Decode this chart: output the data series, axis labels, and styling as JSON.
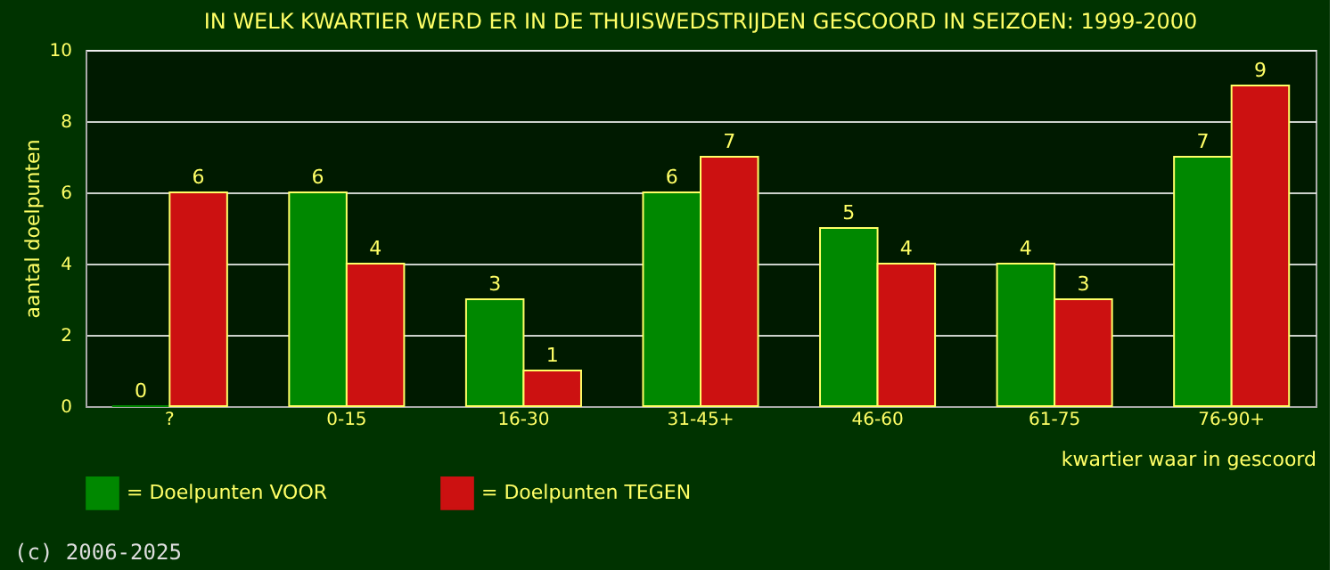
{
  "chart_data": {
    "type": "bar",
    "title": "IN WELK KWARTIER WERD ER IN DE THUISWEDSTRIJDEN GESCOORD IN SEIZOEN: 1999-2000",
    "xlabel": "kwartier waar in gescoord",
    "ylabel": "aantal doelpunten",
    "categories": [
      "?",
      "0-15",
      "16-30",
      "31-45+",
      "46-60",
      "61-75",
      "76-90+"
    ],
    "series": [
      {
        "name": "= Doelpunten VOOR",
        "color": "#008800",
        "values": [
          0,
          6,
          3,
          6,
          5,
          4,
          7
        ]
      },
      {
        "name": "= Doelpunten TEGEN",
        "color": "#cc1111",
        "values": [
          6,
          4,
          1,
          7,
          4,
          3,
          9
        ]
      }
    ],
    "ylim": [
      0,
      10
    ],
    "yticks": [
      0,
      2,
      4,
      6,
      8,
      10
    ],
    "grid": "y",
    "legend": "bottom",
    "data_labels": true,
    "annotations": [
      "(c) 2006-2025"
    ]
  }
}
